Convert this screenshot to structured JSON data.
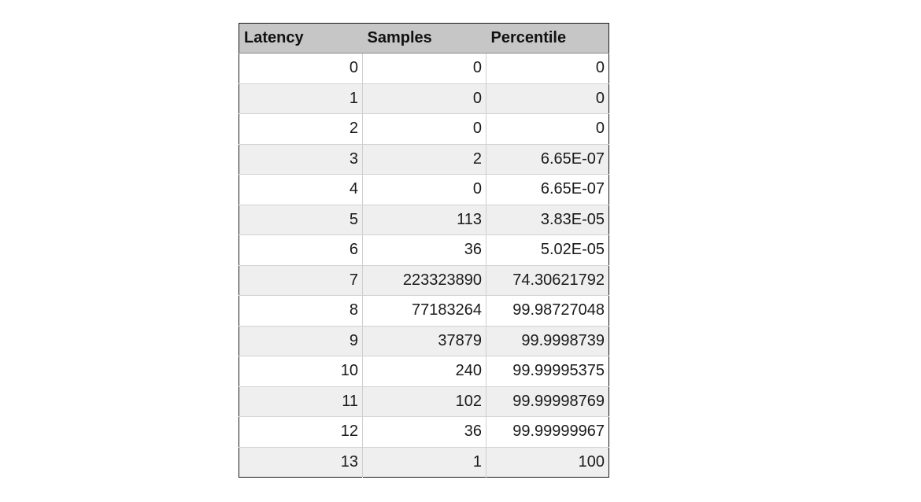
{
  "table": {
    "headers": [
      "Latency",
      "Samples",
      "Percentile"
    ],
    "rows": [
      [
        "0",
        "0",
        "0"
      ],
      [
        "1",
        "0",
        "0"
      ],
      [
        "2",
        "0",
        "0"
      ],
      [
        "3",
        "2",
        "6.65E-07"
      ],
      [
        "4",
        "0",
        "6.65E-07"
      ],
      [
        "5",
        "113",
        "3.83E-05"
      ],
      [
        "6",
        "36",
        "5.02E-05"
      ],
      [
        "7",
        "223323890",
        "74.30621792"
      ],
      [
        "8",
        "77183264",
        "99.98727048"
      ],
      [
        "9",
        "37879",
        "99.9998739"
      ],
      [
        "10",
        "240",
        "99.99995375"
      ],
      [
        "11",
        "102",
        "99.99998769"
      ],
      [
        "12",
        "36",
        "99.99999967"
      ],
      [
        "13",
        "1",
        "100"
      ]
    ]
  }
}
